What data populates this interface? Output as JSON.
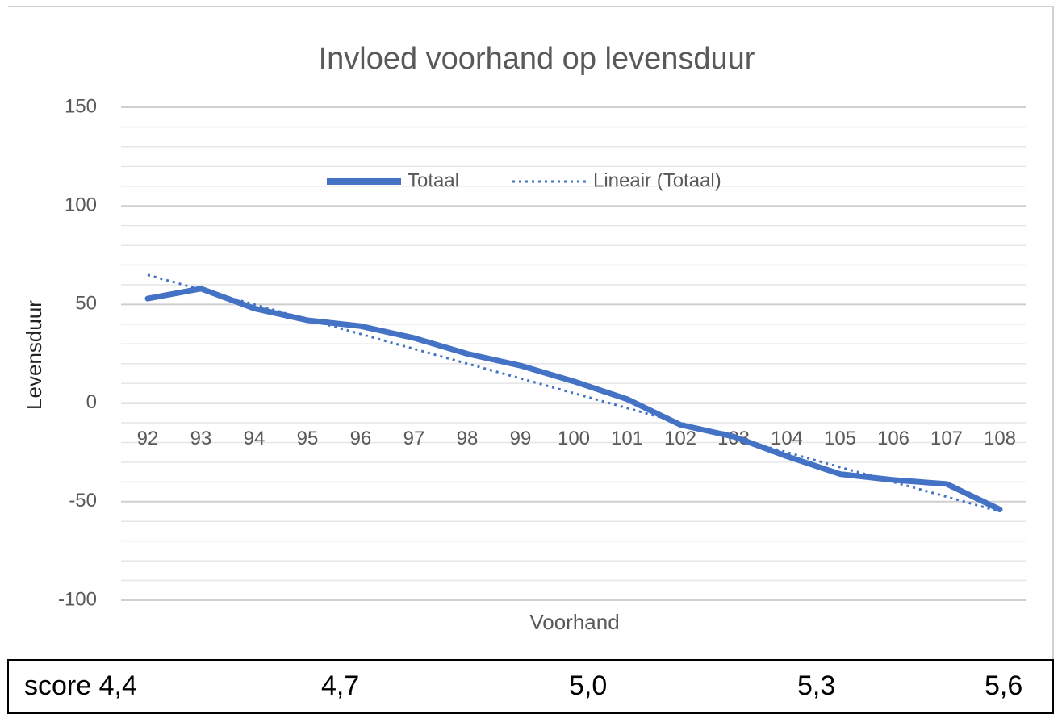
{
  "chart_data": {
    "type": "line",
    "title": "Invloed voorhand op levensduur",
    "x_label": "Voorhand",
    "y_label": "Levensduur",
    "categories": [
      "92",
      "93",
      "94",
      "95",
      "96",
      "97",
      "98",
      "99",
      "100",
      "101",
      "102",
      "103",
      "104",
      "105",
      "106",
      "107",
      "108"
    ],
    "series": [
      {
        "name": "Totaal",
        "color": "#4472c4",
        "style": "solid",
        "values": [
          53,
          58,
          48,
          42,
          39,
          33,
          25,
          19,
          11,
          2,
          -11,
          -17,
          -27,
          -36,
          -39,
          -41,
          -54
        ]
      },
      {
        "name": "Lineair (Totaal)",
        "color": "#4472c4",
        "style": "dotted",
        "values": [
          65,
          57.5,
          50,
          42.5,
          35,
          27.5,
          20,
          12.5,
          5,
          -2.5,
          -10,
          -17.5,
          -25,
          -32.5,
          -40,
          -47.5,
          -55
        ]
      }
    ],
    "ylim": [
      -100,
      150
    ],
    "yticks": [
      -100,
      -50,
      0,
      50,
      100,
      150
    ],
    "minor_yticks": [
      -90,
      -80,
      -70,
      -60,
      -40,
      -30,
      -20,
      -10,
      10,
      20,
      30,
      40,
      60,
      70,
      80,
      90,
      110,
      120,
      130,
      140
    ],
    "grid": true,
    "legend": "top"
  },
  "score_row": {
    "cells": [
      "score 4,4",
      "4,7",
      "5,0",
      "5,3",
      "5,6"
    ]
  }
}
